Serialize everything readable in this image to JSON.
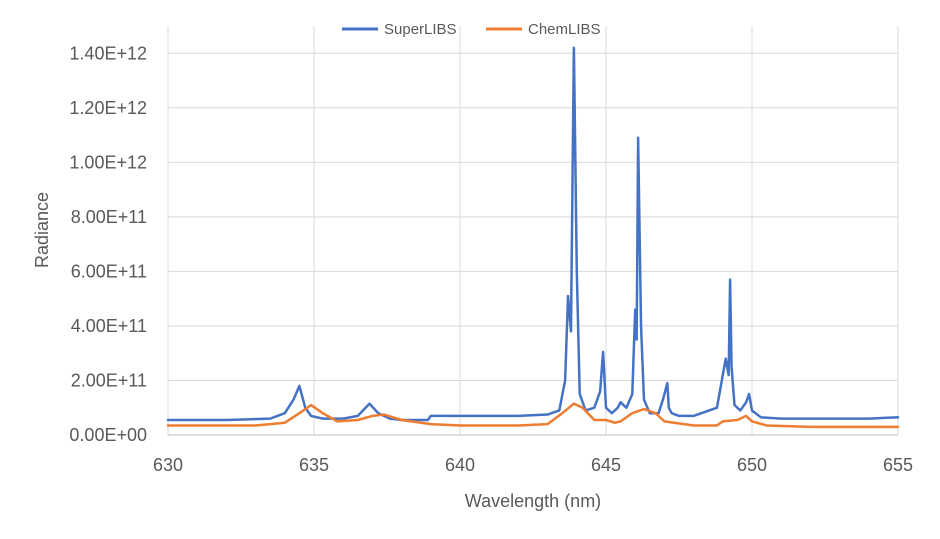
{
  "chart_data": {
    "type": "line",
    "xlabel": "Wavelength (nm)",
    "ylabel": "Radiance",
    "xlim": [
      630,
      655
    ],
    "ylim": [
      0,
      1500000000000.0
    ],
    "x_ticks": [
      630,
      635,
      640,
      645,
      650,
      655
    ],
    "x_tick_labels": [
      "630",
      "635",
      "640",
      "645",
      "650",
      "655"
    ],
    "y_ticks": [
      0,
      200000000000.0,
      400000000000.0,
      600000000000.0,
      800000000000.0,
      1000000000000.0,
      1200000000000.0,
      1400000000000.0
    ],
    "y_tick_labels": [
      "0.00E+00",
      "2.00E+11",
      "4.00E+11",
      "6.00E+11",
      "8.00E+11",
      "1.00E+12",
      "1.20E+12",
      "1.40E+12"
    ],
    "grid": true,
    "legend_position": "top-center",
    "series": [
      {
        "name": "SuperLIBS",
        "color": "#4472C4",
        "x": [
          630.0,
          632.0,
          633.5,
          634.0,
          634.3,
          634.5,
          634.7,
          634.9,
          635.3,
          636.0,
          636.5,
          636.9,
          637.2,
          637.6,
          638.0,
          638.9,
          639.0,
          640.0,
          641.0,
          642.0,
          643.0,
          643.4,
          643.6,
          643.7,
          643.8,
          643.9,
          644.0,
          644.1,
          644.3,
          644.6,
          644.8,
          644.9,
          645.0,
          645.2,
          645.4,
          645.5,
          645.7,
          645.9,
          646.0,
          646.05,
          646.1,
          646.2,
          646.3,
          646.5,
          646.8,
          646.95,
          647.1,
          647.15,
          647.25,
          647.5,
          648.0,
          648.8,
          649.1,
          649.2,
          649.25,
          649.3,
          649.4,
          649.6,
          649.8,
          649.9,
          650.0,
          650.3,
          651.0,
          652.0,
          653.0,
          654.0,
          655.0
        ],
        "y": [
          55000000000.0,
          55000000000.0,
          60000000000.0,
          80000000000.0,
          130000000000.0,
          180000000000.0,
          100000000000.0,
          70000000000.0,
          60000000000.0,
          60000000000.0,
          70000000000.0,
          115000000000.0,
          80000000000.0,
          60000000000.0,
          55000000000.0,
          55000000000.0,
          70000000000.0,
          70000000000.0,
          70000000000.0,
          70000000000.0,
          75000000000.0,
          90000000000.0,
          200000000000.0,
          510000000000.0,
          380000000000.0,
          1420000000000.0,
          600000000000.0,
          150000000000.0,
          90000000000.0,
          100000000000.0,
          160000000000.0,
          305000000000.0,
          100000000000.0,
          80000000000.0,
          100000000000.0,
          120000000000.0,
          100000000000.0,
          150000000000.0,
          460000000000.0,
          350000000000.0,
          1090000000000.0,
          400000000000.0,
          130000000000.0,
          80000000000.0,
          80000000000.0,
          130000000000.0,
          190000000000.0,
          100000000000.0,
          80000000000.0,
          70000000000.0,
          70000000000.0,
          100000000000.0,
          280000000000.0,
          220000000000.0,
          570000000000.0,
          250000000000.0,
          110000000000.0,
          90000000000.0,
          120000000000.0,
          150000000000.0,
          90000000000.0,
          65000000000.0,
          60000000000.0,
          60000000000.0,
          60000000000.0,
          60000000000.0,
          65000000000.0
        ]
      },
      {
        "name": "ChemLIBS",
        "color": "#ED7D31",
        "x": [
          630.0,
          633.0,
          634.0,
          634.5,
          634.9,
          635.3,
          635.8,
          636.5,
          637.0,
          637.4,
          638.0,
          639.0,
          640.0,
          641.0,
          642.0,
          643.0,
          643.5,
          643.9,
          644.2,
          644.6,
          645.0,
          645.3,
          645.5,
          645.9,
          646.3,
          646.7,
          647.0,
          648.0,
          648.8,
          649.0,
          649.5,
          649.8,
          650.0,
          650.5,
          652.0,
          655.0
        ],
        "y": [
          35000000000.0,
          35000000000.0,
          45000000000.0,
          80000000000.0,
          110000000000.0,
          80000000000.0,
          50000000000.0,
          55000000000.0,
          70000000000.0,
          75000000000.0,
          55000000000.0,
          40000000000.0,
          35000000000.0,
          35000000000.0,
          35000000000.0,
          40000000000.0,
          80000000000.0,
          115000000000.0,
          100000000000.0,
          55000000000.0,
          55000000000.0,
          45000000000.0,
          50000000000.0,
          80000000000.0,
          95000000000.0,
          80000000000.0,
          50000000000.0,
          35000000000.0,
          35000000000.0,
          50000000000.0,
          55000000000.0,
          70000000000.0,
          50000000000.0,
          35000000000.0,
          30000000000.0,
          30000000000.0
        ]
      }
    ]
  }
}
